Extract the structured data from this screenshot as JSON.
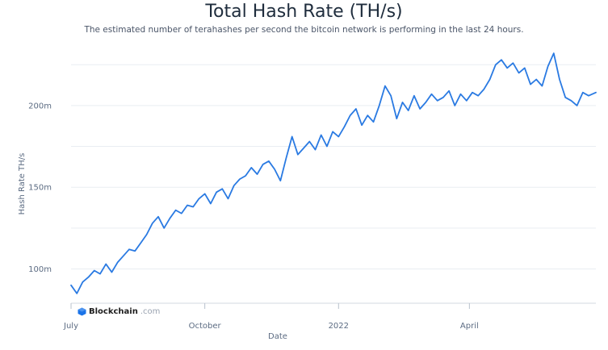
{
  "chart_data": {
    "type": "line",
    "title": "Total Hash Rate (TH/s)",
    "subtitle": "The estimated number of terahashes per second the bitcoin network is performing in the last 24 hours.",
    "xlabel": "Date",
    "ylabel": "Hash Rate TH/s",
    "x_ticks": [
      "July",
      "October",
      "2022",
      "April"
    ],
    "y_ticks": [
      100000000,
      150000000,
      200000000
    ],
    "y_tick_labels": [
      "100m",
      "150m",
      "200m"
    ],
    "ylim": [
      80000000,
      235000000
    ],
    "xlim": [
      "2021-07-01",
      "2022-06-27"
    ],
    "grid": "horizontal",
    "line_color": "#2a7ae2",
    "x": [
      "2021-07-01",
      "2021-07-05",
      "2021-07-09",
      "2021-07-13",
      "2021-07-17",
      "2021-07-21",
      "2021-07-25",
      "2021-07-29",
      "2021-08-02",
      "2021-08-06",
      "2021-08-10",
      "2021-08-14",
      "2021-08-18",
      "2021-08-22",
      "2021-08-26",
      "2021-08-30",
      "2021-09-03",
      "2021-09-07",
      "2021-09-11",
      "2021-09-15",
      "2021-09-19",
      "2021-09-23",
      "2021-09-27",
      "2021-10-01",
      "2021-10-05",
      "2021-10-09",
      "2021-10-13",
      "2021-10-17",
      "2021-10-21",
      "2021-10-25",
      "2021-10-29",
      "2021-11-02",
      "2021-11-06",
      "2021-11-10",
      "2021-11-14",
      "2021-11-18",
      "2021-11-22",
      "2021-11-26",
      "2021-11-30",
      "2021-12-04",
      "2021-12-08",
      "2021-12-12",
      "2021-12-16",
      "2021-12-20",
      "2021-12-24",
      "2021-12-28",
      "2022-01-01",
      "2022-01-05",
      "2022-01-09",
      "2022-01-13",
      "2022-01-17",
      "2022-01-21",
      "2022-01-25",
      "2022-01-29",
      "2022-02-02",
      "2022-02-06",
      "2022-02-10",
      "2022-02-14",
      "2022-02-18",
      "2022-02-22",
      "2022-02-26",
      "2022-03-02",
      "2022-03-06",
      "2022-03-10",
      "2022-03-14",
      "2022-03-18",
      "2022-03-22",
      "2022-03-26",
      "2022-03-30",
      "2022-04-03",
      "2022-04-07",
      "2022-04-11",
      "2022-04-15",
      "2022-04-19",
      "2022-04-23",
      "2022-04-27",
      "2022-05-01",
      "2022-05-05",
      "2022-05-09",
      "2022-05-13",
      "2022-05-17",
      "2022-05-21",
      "2022-05-25",
      "2022-05-29",
      "2022-06-02",
      "2022-06-06",
      "2022-06-10",
      "2022-06-14",
      "2022-06-18",
      "2022-06-22",
      "2022-06-27"
    ],
    "series": [
      {
        "values": [
          90000000,
          85000000,
          92000000,
          95000000,
          99000000,
          97000000,
          103000000,
          98000000,
          104000000,
          108000000,
          112000000,
          111000000,
          116000000,
          121000000,
          128000000,
          132000000,
          125000000,
          131000000,
          136000000,
          134000000,
          139000000,
          138000000,
          143000000,
          146000000,
          140000000,
          147000000,
          149000000,
          143000000,
          151000000,
          155000000,
          157000000,
          162000000,
          158000000,
          164000000,
          166000000,
          161000000,
          154000000,
          168000000,
          181000000,
          170000000,
          174000000,
          178000000,
          173000000,
          182000000,
          175000000,
          184000000,
          181000000,
          187000000,
          194000000,
          198000000,
          188000000,
          194000000,
          190000000,
          200000000,
          212000000,
          206000000,
          192000000,
          202000000,
          197000000,
          206000000,
          198000000,
          202000000,
          207000000,
          203000000,
          205000000,
          209000000,
          200000000,
          207000000,
          203000000,
          208000000,
          206000000,
          210000000,
          216000000,
          225000000,
          228000000,
          223000000,
          226000000,
          220000000,
          223000000,
          213000000,
          216000000,
          212000000,
          224000000,
          232000000,
          216000000,
          205000000,
          203000000,
          200000000,
          208000000,
          206000000,
          208000000
        ]
      }
    ]
  },
  "logo_text": "Blockchain",
  "logo_domain": ".com"
}
